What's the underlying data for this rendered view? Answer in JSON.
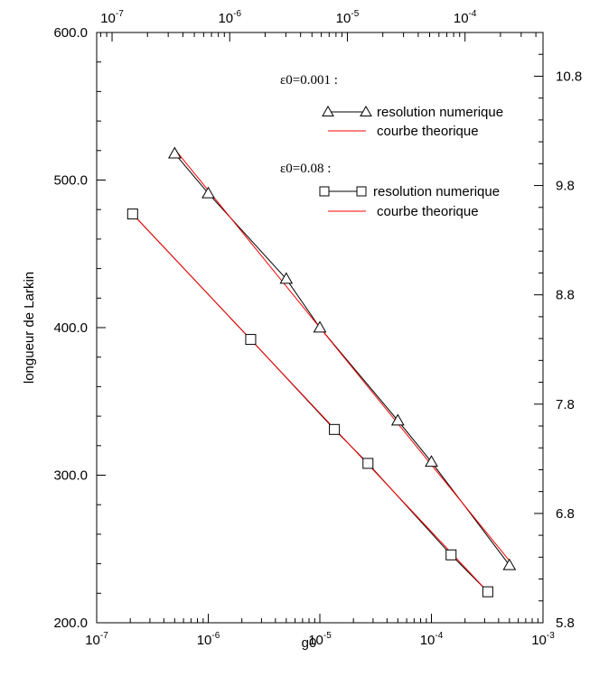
{
  "chart_data": {
    "type": "line",
    "xscale": "log",
    "xlabel": "g0",
    "ylabel": "longueur de Larkin",
    "xlim": [
      1e-07,
      0.001
    ],
    "ylim": [
      200,
      600
    ],
    "y2lim": [
      5.8,
      11.2
    ],
    "x_ticks": [
      1e-07,
      1e-06,
      1e-05,
      0.0001,
      0.001
    ],
    "x_tick_labels": [
      {
        "base": "10",
        "exp": "-7"
      },
      {
        "base": "10",
        "exp": "-6"
      },
      {
        "base": "10",
        "exp": "-5"
      },
      {
        "base": "10",
        "exp": "-4"
      },
      {
        "base": "10",
        "exp": "-3"
      }
    ],
    "y_ticks": [
      200,
      300,
      400,
      500,
      600
    ],
    "y_tick_labels": [
      "200.0",
      "300.0",
      "400.0",
      "500.0",
      "600.0"
    ],
    "top_axis": {
      "ticks": [
        1e-07,
        1e-06,
        1e-05,
        0.0001
      ],
      "tick_labels": [
        {
          "base": "10",
          "exp": "-7"
        },
        {
          "base": "10",
          "exp": "-6"
        },
        {
          "base": "10",
          "exp": "-5"
        },
        {
          "base": "10",
          "exp": "-4"
        }
      ],
      "top_xlim": [
        7.4e-08,
        0.00046
      ]
    },
    "right_axis": {
      "ticks": [
        5.8,
        6.8,
        7.8,
        8.8,
        9.8,
        10.8
      ],
      "tick_labels": [
        "5.8",
        "6.8",
        "7.8",
        "8.8",
        "9.8",
        "10.8"
      ]
    },
    "legend_groups": [
      {
        "heading": "ε0=0.001 :",
        "entries": [
          {
            "label": "resolution numerique",
            "marker": "triangle"
          },
          {
            "label": "courbe theorique",
            "marker": "none"
          }
        ]
      },
      {
        "heading": "ε0=0.08 :",
        "entries": [
          {
            "label": "resolution numerique",
            "marker": "square"
          },
          {
            "label": "courbe theorique",
            "marker": "none"
          }
        ]
      }
    ],
    "series": [
      {
        "marker": "triangle",
        "color": "#000000",
        "x": [
          5e-07,
          1e-06,
          5e-06,
          1e-05,
          5e-05,
          0.0001,
          0.0005
        ],
        "y": [
          518,
          491,
          433,
          400,
          337,
          309,
          239
        ]
      },
      {
        "marker": "none",
        "color": "#ff0000",
        "x": [
          5e-07,
          0.0005
        ],
        "y": [
          521,
          242
        ]
      },
      {
        "marker": "square",
        "color": "#000000",
        "x": [
          2.1e-07,
          2.4e-06,
          1.35e-05,
          2.7e-05,
          0.00015,
          0.00032
        ],
        "y": [
          477,
          392,
          331,
          308,
          246,
          221
        ]
      },
      {
        "marker": "none",
        "color": "#ff0000",
        "x": [
          2.1e-07,
          0.00032
        ],
        "y": [
          477,
          221
        ]
      }
    ]
  }
}
